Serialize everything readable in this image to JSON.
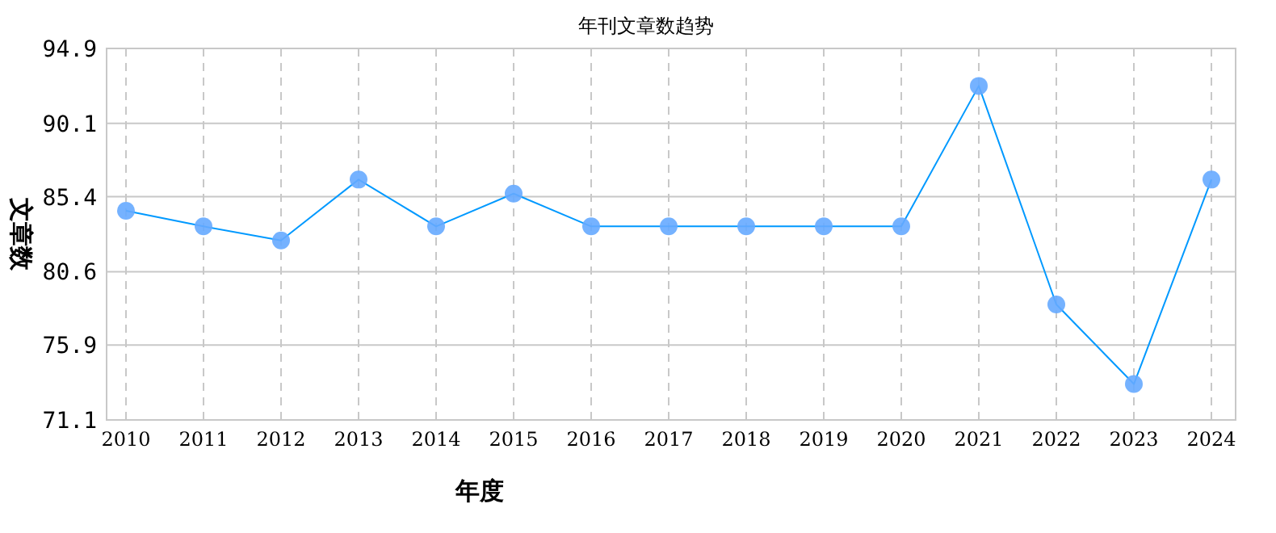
{
  "chart_data": {
    "type": "line",
    "title": "年刊文章数趋势",
    "xlabel": "年度",
    "ylabel": "文章数",
    "categories": [
      "2010",
      "2011",
      "2012",
      "2013",
      "2014",
      "2015",
      "2016",
      "2017",
      "2018",
      "2019",
      "2020",
      "2021",
      "2022",
      "2023",
      "2024"
    ],
    "series": [
      {
        "color": "#0099ff",
        "values": [
          84.5,
          83.5,
          82.6,
          86.5,
          83.5,
          85.6,
          83.5,
          83.5,
          83.5,
          83.5,
          83.5,
          92.5,
          78.5,
          73.4,
          86.5
        ]
      }
    ],
    "ylim": [
      71.1,
      94.9
    ],
    "yticks": [
      71.1,
      75.9,
      80.6,
      85.4,
      90.1,
      94.9
    ],
    "grid": true,
    "marker": "circle"
  }
}
